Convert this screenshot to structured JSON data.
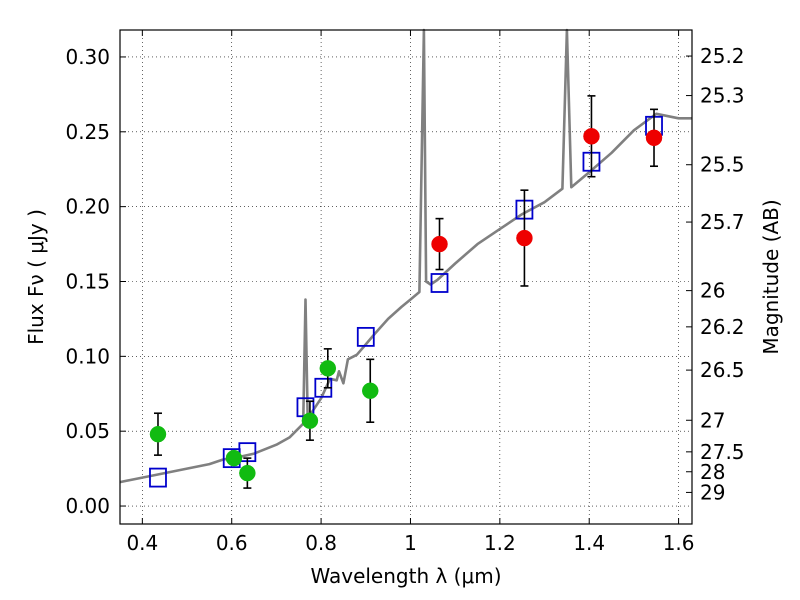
{
  "chart_data": {
    "type": "scatter",
    "xlabel": "Wavelength  λ (μm)",
    "ylabel": "Flux  Fν  ( μJy )",
    "y2label": "Magnitude (AB)",
    "xlim": [
      0.35,
      1.63
    ],
    "ylim": [
      -0.012,
      0.318
    ],
    "grid": true,
    "x_ticks": [
      0.4,
      0.6,
      0.8,
      1,
      1.2,
      1.4,
      1.6
    ],
    "x_tick_labels": [
      "0.4",
      "0.6",
      "0.8",
      "1",
      "1.2",
      "1.4",
      "1.6"
    ],
    "y_ticks": [
      0.0,
      0.05,
      0.1,
      0.15,
      0.2,
      0.25,
      0.3
    ],
    "y_tick_labels": [
      "0.00",
      "0.05",
      "0.10",
      "0.15",
      "0.20",
      "0.25",
      "0.30"
    ],
    "y2_ticks": [
      {
        "label": "25.2",
        "flux": 0.3006
      },
      {
        "label": "25.3",
        "flux": 0.2742
      },
      {
        "label": "25.5",
        "flux": 0.228
      },
      {
        "label": "25.7",
        "flux": 0.1897
      },
      {
        "label": "26",
        "flux": 0.1439
      },
      {
        "label": "26.2",
        "flux": 0.1197
      },
      {
        "label": "26.5",
        "flux": 0.0908
      },
      {
        "label": "27",
        "flux": 0.0573
      },
      {
        "label": "27.5",
        "flux": 0.0362
      },
      {
        "label": "28",
        "flux": 0.0229
      },
      {
        "label": "29",
        "flux": 0.0091
      }
    ],
    "series": [
      {
        "marker": "line",
        "color": "#808080",
        "points": [
          [
            0.35,
            0.016
          ],
          [
            0.4,
            0.019
          ],
          [
            0.45,
            0.022
          ],
          [
            0.5,
            0.025
          ],
          [
            0.55,
            0.028
          ],
          [
            0.58,
            0.031
          ],
          [
            0.62,
            0.033
          ],
          [
            0.65,
            0.035
          ],
          [
            0.7,
            0.041
          ],
          [
            0.73,
            0.046
          ],
          [
            0.76,
            0.055
          ],
          [
            0.765,
            0.138
          ],
          [
            0.77,
            0.058
          ],
          [
            0.78,
            0.063
          ],
          [
            0.8,
            0.072
          ],
          [
            0.82,
            0.085
          ],
          [
            0.835,
            0.084
          ],
          [
            0.84,
            0.09
          ],
          [
            0.85,
            0.082
          ],
          [
            0.86,
            0.098
          ],
          [
            0.88,
            0.101
          ],
          [
            0.9,
            0.108
          ],
          [
            0.92,
            0.115
          ],
          [
            0.95,
            0.125
          ],
          [
            0.98,
            0.133
          ],
          [
            1.0,
            0.138
          ],
          [
            1.02,
            0.143
          ],
          [
            1.03,
            0.318
          ],
          [
            1.035,
            0.15
          ],
          [
            1.045,
            0.148
          ],
          [
            1.06,
            0.151
          ],
          [
            1.1,
            0.162
          ],
          [
            1.15,
            0.175
          ],
          [
            1.2,
            0.185
          ],
          [
            1.25,
            0.195
          ],
          [
            1.3,
            0.203
          ],
          [
            1.34,
            0.212
          ],
          [
            1.35,
            0.318
          ],
          [
            1.36,
            0.213
          ],
          [
            1.4,
            0.223
          ],
          [
            1.45,
            0.236
          ],
          [
            1.5,
            0.251
          ],
          [
            1.55,
            0.262
          ],
          [
            1.6,
            0.259
          ],
          [
            1.63,
            0.259
          ]
        ]
      },
      {
        "marker": "open-square",
        "color": "#0000cc",
        "points": [
          [
            0.435,
            0.019
          ],
          [
            0.6,
            0.032
          ],
          [
            0.635,
            0.036
          ],
          [
            0.765,
            0.066
          ],
          [
            0.805,
            0.079
          ],
          [
            0.9,
            0.113
          ],
          [
            1.065,
            0.149
          ],
          [
            1.255,
            0.198
          ],
          [
            1.405,
            0.23
          ],
          [
            1.545,
            0.254
          ]
        ]
      },
      {
        "marker": "filled-circle",
        "color": "#11bb11",
        "points": [
          {
            "x": 0.435,
            "y": 0.048,
            "err": [
              0.014,
              0.014
            ]
          },
          {
            "x": 0.605,
            "y": 0.032,
            "err": [
              0.0,
              0.0
            ]
          },
          {
            "x": 0.635,
            "y": 0.022,
            "err": [
              0.01,
              0.01
            ]
          },
          {
            "x": 0.775,
            "y": 0.057,
            "err": [
              0.013,
              0.013
            ]
          },
          {
            "x": 0.815,
            "y": 0.092,
            "err": [
              0.013,
              0.013
            ]
          },
          {
            "x": 0.91,
            "y": 0.077,
            "err": [
              0.021,
              0.021
            ]
          }
        ]
      },
      {
        "marker": "filled-circle",
        "color": "#ee0000",
        "points": [
          {
            "x": 1.065,
            "y": 0.175,
            "err": [
              0.017,
              0.017
            ]
          },
          {
            "x": 1.255,
            "y": 0.179,
            "err": [
              0.032,
              0.032
            ]
          },
          {
            "x": 1.405,
            "y": 0.247,
            "err": [
              0.027,
              0.027
            ]
          },
          {
            "x": 1.545,
            "y": 0.246,
            "err": [
              0.019,
              0.019
            ]
          }
        ]
      }
    ]
  }
}
